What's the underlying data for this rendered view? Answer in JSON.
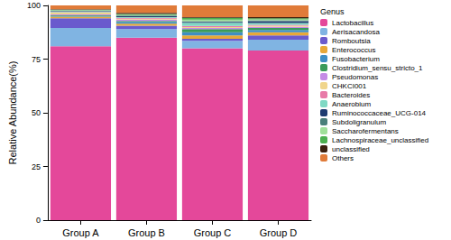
{
  "chart_data": {
    "type": "bar",
    "y_label": "Relative Abundance(%)",
    "legend_title": "Genus",
    "legend": "right",
    "stacked": true,
    "grid": false,
    "categories": [
      "Group A",
      "Group B",
      "Group C",
      "Group D"
    ],
    "ylim": [
      0,
      100
    ],
    "yticks": [
      0,
      25,
      50,
      75,
      100
    ],
    "series": [
      {
        "name": "Lactobacillus",
        "color": "#e4489a",
        "values": [
          81,
          85,
          80,
          79
        ]
      },
      {
        "name": "Aerisacandosa",
        "color": "#80b4e2",
        "values": [
          8.5,
          4,
          3.5,
          5
        ]
      },
      {
        "name": "Romboutsia",
        "color": "#6a5acd",
        "values": [
          4.5,
          1.5,
          1,
          2
        ]
      },
      {
        "name": "Enterococcus",
        "color": "#e8a838",
        "values": [
          0.8,
          1,
          1.5,
          1.5
        ]
      },
      {
        "name": "Fusobacterium",
        "color": "#3e8ec4",
        "values": [
          0.3,
          0.8,
          1.5,
          1
        ]
      },
      {
        "name": "Clostridium_sensu_stricto_1",
        "color": "#3a9a5a",
        "values": [
          0.3,
          0.5,
          1.5,
          1
        ]
      },
      {
        "name": "Pseudomonas",
        "color": "#c58be6",
        "values": [
          0.4,
          0.6,
          0.5,
          0.5
        ]
      },
      {
        "name": "CHKCI001",
        "color": "#f0d58c",
        "values": [
          0.8,
          0.4,
          0.4,
          0.5
        ]
      },
      {
        "name": "Bacteroides",
        "color": "#e87aa8",
        "values": [
          0.3,
          0.4,
          0.5,
          0.5
        ]
      },
      {
        "name": "Anaerobium",
        "color": "#7fd9c4",
        "values": [
          0.3,
          0.3,
          1.5,
          0.8
        ]
      },
      {
        "name": "Ruminococcaceae_UCG-014",
        "color": "#1f3b70",
        "values": [
          0.2,
          0.5,
          0.4,
          0.8
        ]
      },
      {
        "name": "Subdoligranulum",
        "color": "#4a7f7a",
        "values": [
          0.2,
          0.3,
          0.3,
          0.5
        ]
      },
      {
        "name": "Saccharofermentans",
        "color": "#a0e09a",
        "values": [
          0.2,
          0.3,
          0.8,
          0.4
        ]
      },
      {
        "name": "Lachnospiraceae_unclassified",
        "color": "#4caf50",
        "values": [
          0.2,
          0.4,
          0.8,
          0.5
        ]
      },
      {
        "name": "unclassified",
        "color": "#3b1f0f",
        "values": [
          0.2,
          0.5,
          0.3,
          0.5
        ]
      },
      {
        "name": "Others",
        "color": "#e07b39",
        "values": [
          1.8,
          3.5,
          5.5,
          5.5
        ]
      }
    ]
  }
}
